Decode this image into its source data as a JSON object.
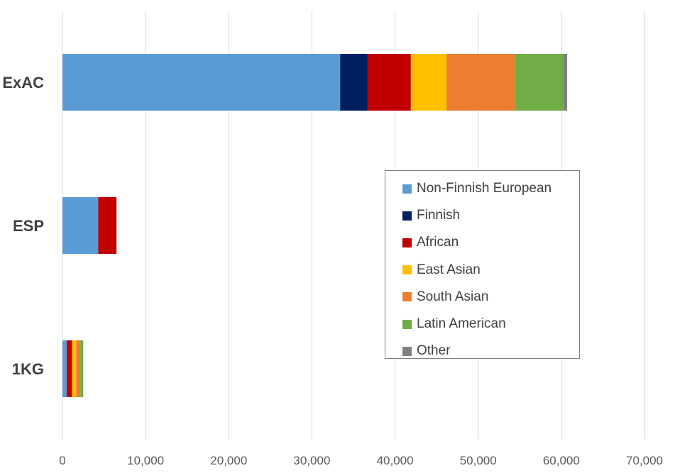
{
  "chart_data": {
    "type": "bar",
    "orientation": "horizontal",
    "stacked": true,
    "title": "",
    "xlabel": "",
    "ylabel": "",
    "categories": [
      "ExAC",
      "ESP",
      "1KG"
    ],
    "xlim": [
      0,
      70000
    ],
    "x_ticks": [
      0,
      10000,
      20000,
      30000,
      40000,
      50000,
      60000,
      70000
    ],
    "x_tick_labels": [
      "0",
      "10,000",
      "20,000",
      "30,000",
      "40,000",
      "50,000",
      "60,000",
      "70,000"
    ],
    "grid": true,
    "legend_position": "right",
    "series": [
      {
        "name": "Non-Finnish European",
        "color": "#5B9BD5",
        "values": [
          33400,
          4300,
          500
        ]
      },
      {
        "name": "Finnish",
        "color": "#002060",
        "values": [
          3300,
          0,
          0
        ]
      },
      {
        "name": "African",
        "color": "#C00000",
        "values": [
          5200,
          2200,
          650
        ]
      },
      {
        "name": "East Asian",
        "color": "#FFC000",
        "values": [
          4300,
          0,
          500
        ]
      },
      {
        "name": "South Asian",
        "color": "#ED7D31",
        "values": [
          8200,
          0,
          500
        ]
      },
      {
        "name": "Latin American",
        "color": "#70AD47",
        "values": [
          5800,
          0,
          350
        ]
      },
      {
        "name": "Other",
        "color": "#808080",
        "values": [
          500,
          0,
          0
        ]
      }
    ]
  }
}
